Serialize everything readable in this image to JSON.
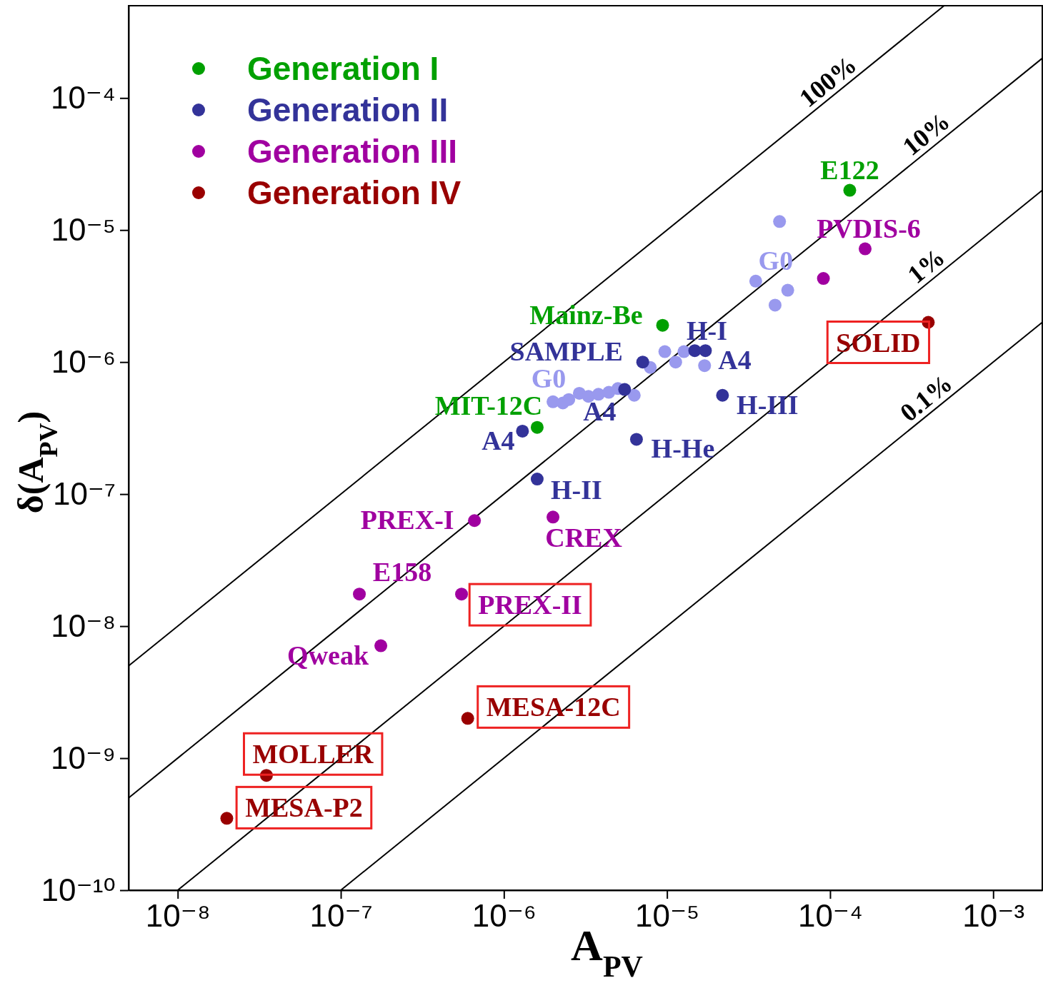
{
  "chart_data": {
    "type": "scatter",
    "xlabel": "A$_{PV}$",
    "ylabel": "δ(A$_{PV}$)",
    "log": "xy",
    "xlim": [
      5e-09,
      0.002
    ],
    "ylim": [
      1e-10,
      0.0005
    ],
    "grid": false,
    "legend": "top left",
    "marker": "circle",
    "xticks": [
      {
        "value": 1e-08,
        "label": "10⁻⁸"
      },
      {
        "value": 1e-07,
        "label": "10⁻⁷"
      },
      {
        "value": 1e-06,
        "label": "10⁻⁶"
      },
      {
        "value": 1e-05,
        "label": "10⁻⁵"
      },
      {
        "value": 0.0001,
        "label": "10⁻⁴"
      },
      {
        "value": 0.001,
        "label": "10⁻³"
      }
    ],
    "yticks": [
      {
        "value": 1e-10,
        "label": "10⁻¹⁰"
      },
      {
        "value": 1e-09,
        "label": "10⁻⁹"
      },
      {
        "value": 1e-08,
        "label": "10⁻⁸"
      },
      {
        "value": 1e-07,
        "label": "10⁻⁷"
      },
      {
        "value": 1e-06,
        "label": "10⁻⁶"
      },
      {
        "value": 1e-05,
        "label": "10⁻⁵"
      },
      {
        "value": 0.0001,
        "label": "10⁻⁴"
      }
    ],
    "series": [
      {
        "color": "#9999ee",
        "x": [
          4.9e-05,
          3.5e-05,
          5.5e-05,
          4.6e-05,
          9.7e-06,
          7.9e-06,
          1.13e-05,
          1.27e-05,
          1.7e-05,
          2e-06,
          2.3e-06,
          2.5e-06,
          2.9e-06,
          3.3e-06,
          3.8e-06,
          4.4e-06,
          5e-06,
          6.3e-06
        ],
        "values": [
          1.16e-05,
          4.1e-06,
          3.5e-06,
          2.7e-06,
          1.2e-06,
          9.1e-07,
          1e-06,
          1.2e-06,
          9.4e-07,
          5e-07,
          4.9e-07,
          5.2e-07,
          5.8e-07,
          5.5e-07,
          5.7e-07,
          5.9e-07,
          6.3e-07,
          5.6e-07
        ]
      },
      {
        "name": "Generation I",
        "color": "#00a000",
        "x": [
          0.000132,
          9.4e-06,
          1.6e-06
        ],
        "values": [
          2e-05,
          1.9e-06,
          3.2e-07
        ]
      },
      {
        "name": "Generation II",
        "color": "#333399",
        "x": [
          7.1e-06,
          1.48e-05,
          1.72e-05,
          5.5e-06,
          2.19e-05,
          1.3e-06,
          6.5e-06,
          1.6e-06
        ],
        "values": [
          1e-06,
          1.22e-06,
          1.22e-06,
          6.2e-07,
          5.6e-07,
          3e-07,
          2.6e-07,
          1.3e-07
        ]
      },
      {
        "name": "Generation III",
        "color": "#a000a0",
        "x": [
          0.000164,
          9.1e-05,
          6.6e-07,
          2e-06,
          1.3e-07,
          5.5e-07,
          1.76e-07
        ],
        "values": [
          7.2e-06,
          4.3e-06,
          6.3e-08,
          6.7e-08,
          1.75e-08,
          1.75e-08,
          7.1e-09
        ]
      },
      {
        "name": "Generation IV",
        "color": "#990000",
        "x": [
          0.0004,
          6e-07,
          3.5e-08,
          2e-08
        ],
        "values": [
          2e-06,
          2e-09,
          7.4e-10,
          3.5e-10
        ]
      },
      {
        "name": "100%",
        "type": "line",
        "marker": "none",
        "color": "#000000",
        "x": [
          5e-09,
          0.0005
        ],
        "values": [
          5e-09,
          0.0005
        ]
      },
      {
        "name": "10%",
        "type": "line",
        "marker": "none",
        "color": "#000000",
        "x": [
          5e-09,
          0.002
        ],
        "values": [
          5e-10,
          0.0002
        ]
      },
      {
        "name": "1%",
        "type": "line",
        "marker": "none",
        "color": "#000000",
        "x": [
          1e-08,
          0.002
        ],
        "values": [
          1e-10,
          2e-05
        ]
      },
      {
        "name": "0.1%",
        "type": "line",
        "marker": "none",
        "color": "#000000",
        "x": [
          1e-07,
          0.002
        ],
        "values": [
          1e-10,
          2e-06
        ]
      }
    ],
    "annotations": [
      {
        "text": "E122",
        "x": 0.000132,
        "y": 2e-05
      },
      {
        "text": "PVDIS-6",
        "x": 0.000164,
        "y": 7.2e-06
      },
      {
        "text": "G0",
        "x": 3.5e-05,
        "y": 4.1e-06
      },
      {
        "text": "Mainz-Be",
        "x": 9.4e-06,
        "y": 1.9e-06
      },
      {
        "text": "H-I",
        "x": 1.48e-05,
        "y": 1.22e-06
      },
      {
        "text": "SAMPLE",
        "x": 7.1e-06,
        "y": 1e-06
      },
      {
        "text": "A4",
        "x": 1.72e-05,
        "y": 1.22e-06
      },
      {
        "text": "SOLID",
        "x": 0.0004,
        "y": 2e-06
      },
      {
        "text": "G0",
        "x": 2e-06,
        "y": 5e-07
      },
      {
        "text": "MIT-12C",
        "x": 1.6e-06,
        "y": 3.2e-07
      },
      {
        "text": "A4",
        "x": 5.5e-06,
        "y": 6.2e-07
      },
      {
        "text": "H-III",
        "x": 2.19e-05,
        "y": 5.6e-07
      },
      {
        "text": "A4",
        "x": 1.3e-06,
        "y": 3e-07
      },
      {
        "text": "H-He",
        "x": 6.5e-06,
        "y": 2.6e-07
      },
      {
        "text": "H-II",
        "x": 1.6e-06,
        "y": 1.3e-07
      },
      {
        "text": "PREX-I",
        "x": 6.6e-07,
        "y": 6.3e-08
      },
      {
        "text": "CREX",
        "x": 2e-06,
        "y": 6.7e-08
      },
      {
        "text": "E158",
        "x": 1.3e-07,
        "y": 1.75e-08
      },
      {
        "text": "PREX-II",
        "x": 5.5e-07,
        "y": 1.75e-08
      },
      {
        "text": "Qweak",
        "x": 1.76e-07,
        "y": 7.1e-09
      },
      {
        "text": "MESA-12C",
        "x": 6e-07,
        "y": 2e-09
      },
      {
        "text": "MOLLER",
        "x": 3.5e-08,
        "y": 7.4e-10
      },
      {
        "text": "MESA-P2",
        "x": 2e-08,
        "y": 3.5e-10
      }
    ]
  }
}
